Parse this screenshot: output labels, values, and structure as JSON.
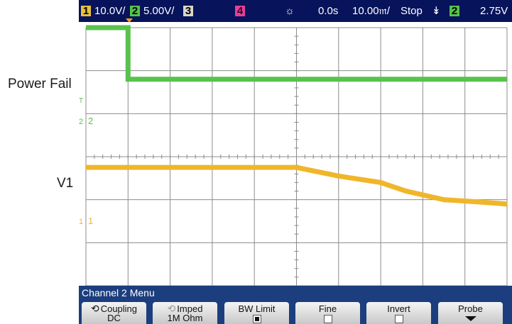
{
  "external_labels": {
    "power_fail": "Power Fail",
    "v1": "V1"
  },
  "topbar": {
    "ch1_num": "1",
    "ch1_scale": "10.0V/",
    "ch2_num": "2",
    "ch2_scale": "5.00V/",
    "ch3_num": "3",
    "ch4_num": "4",
    "sun_icon": "☼",
    "delay": "0.0s",
    "timebase": "10.00𝔪/",
    "run_state": "Stop",
    "trigger_icon": "↡",
    "trig_source": "2",
    "trig_level": "2.75V"
  },
  "screen_markers": {
    "ch2_marker": "2",
    "ch2_ground": "2",
    "ch1_marker": "1",
    "ch1_ground": "1",
    "trigger_level_marker": "T"
  },
  "colors": {
    "ch1": "#f0b62a",
    "ch2": "#58c24d",
    "grid": "#8c8c8c",
    "topbar_bg": "#07135a",
    "menu_bg": "#1c3e7e"
  },
  "menu": {
    "title": "Channel 2 Menu",
    "softkeys": [
      {
        "label": "Coupling",
        "value": "DC",
        "icon": "rotate-icon"
      },
      {
        "label": "Imped",
        "value": "1M Ohm",
        "icon": "rotate-icon-dim"
      },
      {
        "label": "BW Limit",
        "state": "checked"
      },
      {
        "label": "Fine",
        "state": "unchecked"
      },
      {
        "label": "Invert",
        "state": "unchecked"
      },
      {
        "label": "Probe",
        "icon": "down-arrow-icon"
      }
    ]
  },
  "waveforms": {
    "ch2_power_fail": {
      "high_level_div": 6.0,
      "low_level_div": 4.8,
      "fall_time_div": 1.0
    },
    "ch1_v1": {
      "points_div": [
        [
          0,
          2.75
        ],
        [
          5,
          2.75
        ],
        [
          6,
          2.55
        ],
        [
          7,
          2.4
        ],
        [
          7.6,
          2.2
        ],
        [
          8.5,
          2.0
        ],
        [
          9.3,
          1.95
        ],
        [
          10,
          1.9
        ]
      ]
    }
  }
}
